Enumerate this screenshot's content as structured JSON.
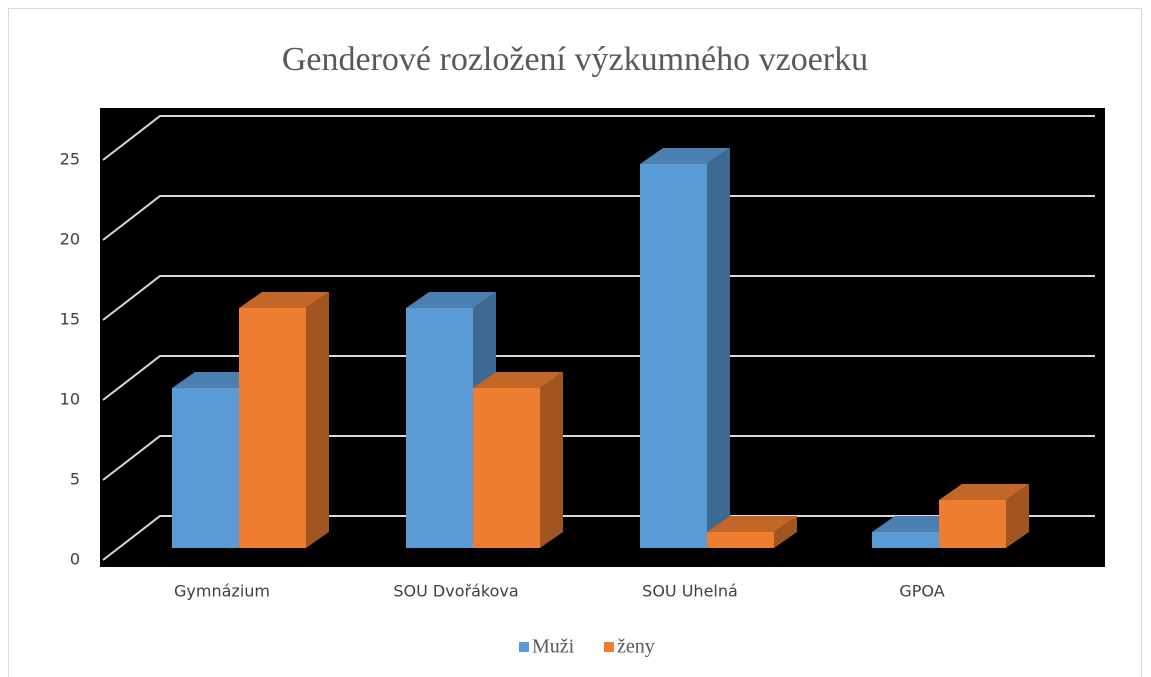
{
  "chart_data": {
    "type": "bar3d",
    "title": "Genderové rozložení výzkumného vzoerku",
    "categories": [
      "Gymnázium",
      "SOU Dvořákova",
      "SOU Uhelná",
      "GPOA"
    ],
    "series": [
      {
        "name": "Muži",
        "color": "#5b9bd5",
        "values": [
          10,
          15,
          24,
          1
        ]
      },
      {
        "name": "ženy",
        "color": "#ed7d31",
        "values": [
          15,
          10,
          1,
          3
        ]
      }
    ],
    "ylim": [
      0,
      25
    ],
    "yticks": [
      0,
      5,
      10,
      15,
      20,
      25
    ],
    "grid": true,
    "legend": "bottom"
  }
}
